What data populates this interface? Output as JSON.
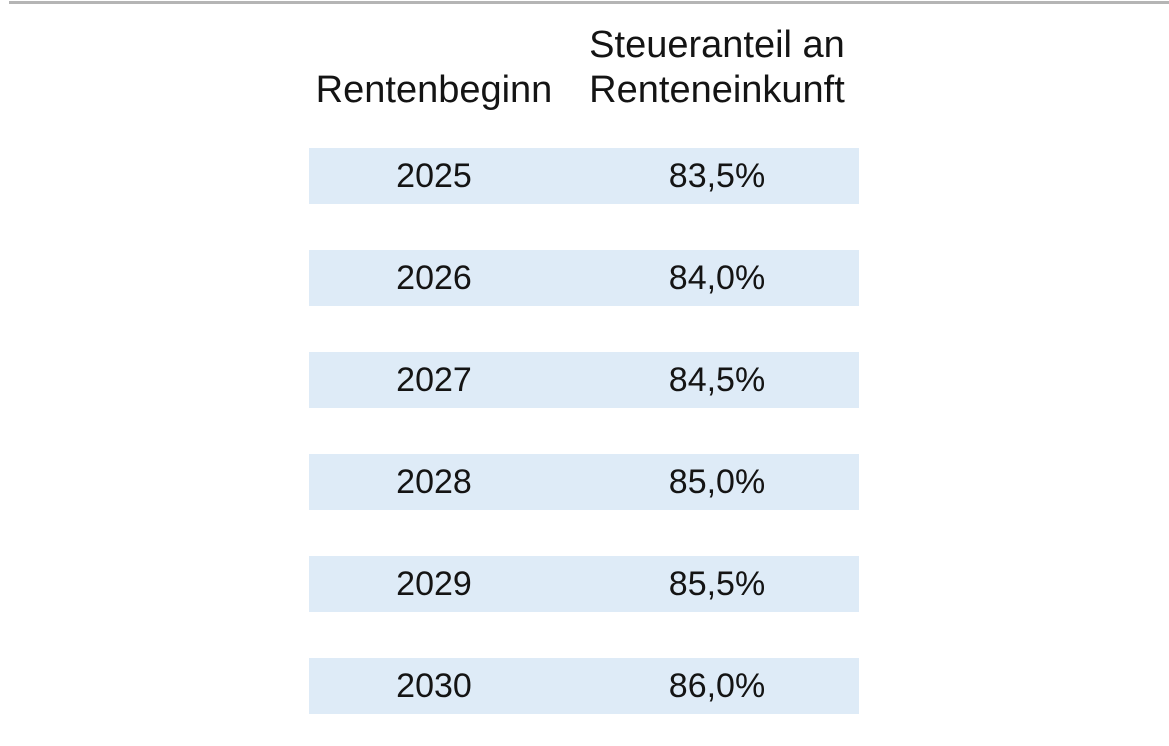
{
  "page": {
    "background_color": "#ffffff",
    "top_rule_color": "#b5b5b5"
  },
  "table": {
    "row_background_color": "#deebf7",
    "text_color": "#141414",
    "columns": [
      {
        "label": "Rentenbeginn"
      },
      {
        "label": "Steueranteil an Renteneinkunft"
      }
    ],
    "rows": [
      {
        "year": "2025",
        "share": "83,5%"
      },
      {
        "year": "2026",
        "share": "84,0%"
      },
      {
        "year": "2027",
        "share": "84,5%"
      },
      {
        "year": "2028",
        "share": "85,0%"
      },
      {
        "year": "2029",
        "share": "85,5%"
      },
      {
        "year": "2030",
        "share": "86,0%"
      }
    ]
  },
  "chart_data": {
    "type": "table",
    "title": "",
    "columns": [
      "Rentenbeginn",
      "Steueranteil an Renteneinkunft"
    ],
    "categories": [
      "2025",
      "2026",
      "2027",
      "2028",
      "2029",
      "2030"
    ],
    "values": [
      83.5,
      84.0,
      84.5,
      85.0,
      85.5,
      86.0
    ],
    "value_unit": "%",
    "value_format": "comma decimal, one decimal place",
    "notes": "Tax share of pension income by pension start year; alternating light-blue row bars on white background"
  }
}
